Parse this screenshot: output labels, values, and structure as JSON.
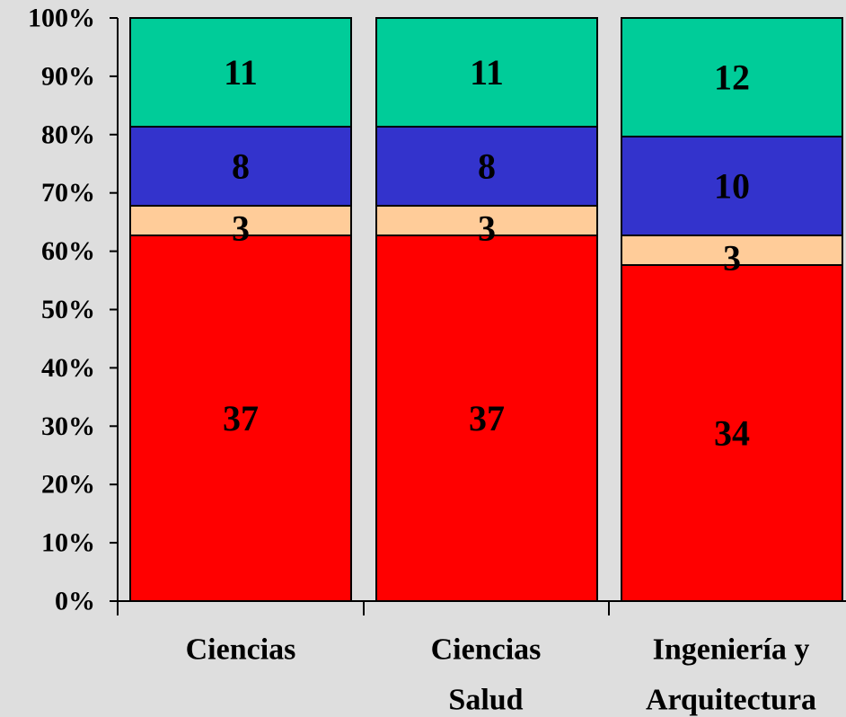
{
  "chart_data": {
    "type": "bar",
    "stacked": true,
    "normalized": true,
    "categories": [
      [
        "Ciencias"
      ],
      [
        "Ciencias",
        "Salud"
      ],
      [
        "Ingeniería y",
        "Arquitectura"
      ]
    ],
    "series": [
      {
        "values": [
          37,
          37,
          34
        ],
        "color": "#ff0000"
      },
      {
        "values": [
          3,
          3,
          3
        ],
        "color": "#ffcc99"
      },
      {
        "values": [
          8,
          8,
          10
        ],
        "color": "#3333cc"
      },
      {
        "values": [
          11,
          11,
          12
        ],
        "color": "#00cc99"
      }
    ],
    "y_ticks": [
      "0%",
      "10%",
      "20%",
      "30%",
      "40%",
      "50%",
      "60%",
      "70%",
      "80%",
      "90%",
      "100%"
    ],
    "ylim": [
      0,
      100
    ],
    "grid": false,
    "legend": "none"
  }
}
